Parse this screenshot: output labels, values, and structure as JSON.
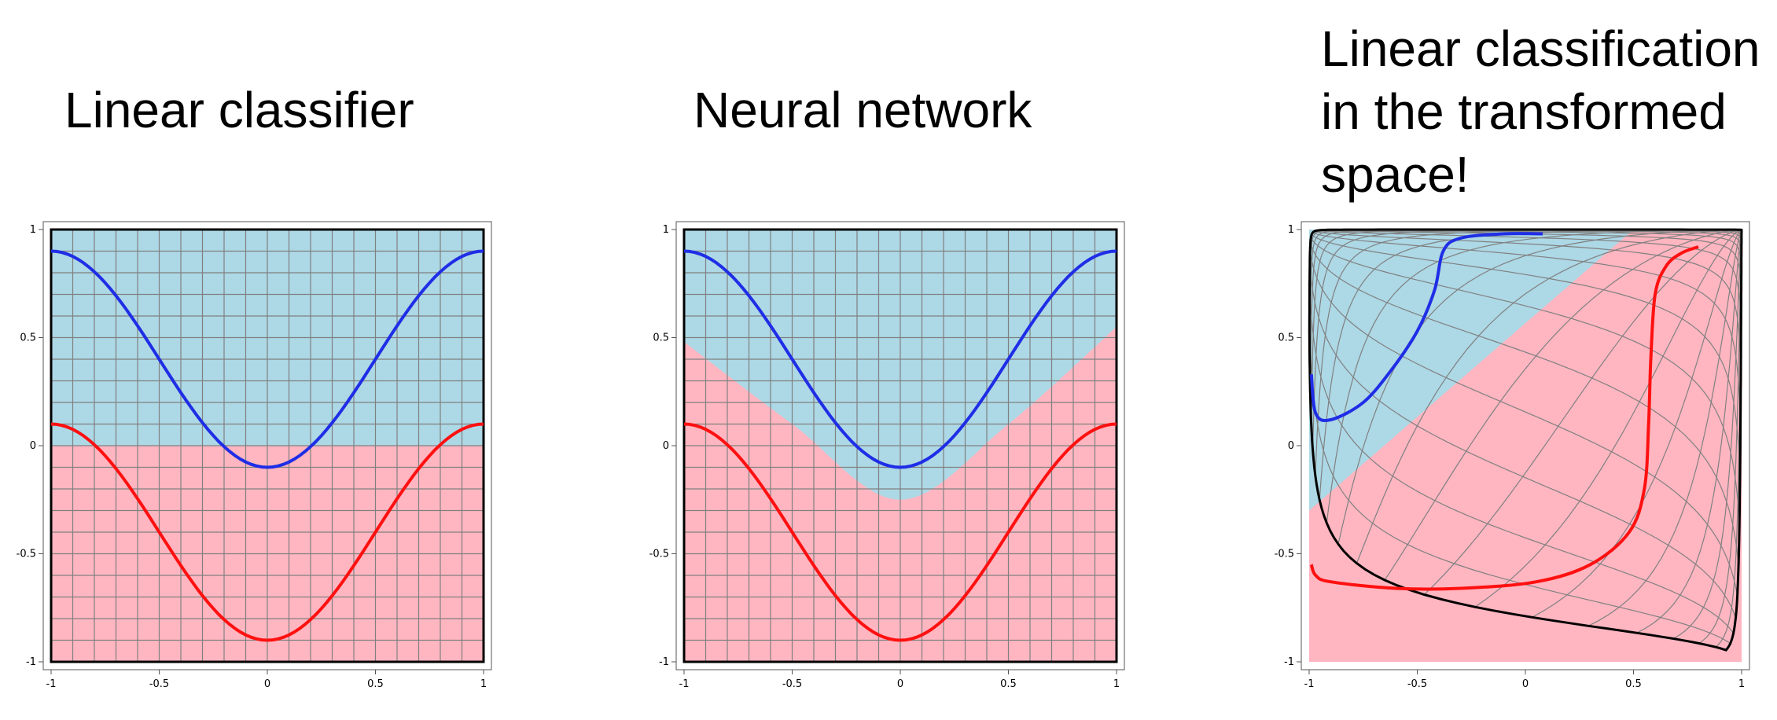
{
  "panels": [
    {
      "title_lines": [
        "Linear classifier"
      ]
    },
    {
      "title_lines": [
        "Neural network"
      ]
    },
    {
      "title_lines": [
        "Linear classification",
        "in the transformed",
        "space!"
      ]
    }
  ],
  "colors": {
    "blue_region": "#add8e6",
    "red_region": "#ffb6c1",
    "blue_curve": "#1f2ee6",
    "red_curve": "#ff1010",
    "grid": "#808080"
  },
  "chart_data": [
    {
      "type": "line",
      "title": "Linear classifier",
      "xlim": [
        -1,
        1
      ],
      "ylim": [
        -1,
        1
      ],
      "x_ticks": [
        "-1",
        "-0.5",
        "0",
        "0.5",
        "1"
      ],
      "y_ticks": [
        "1",
        "0.5",
        "0",
        "-0.5",
        "-1"
      ],
      "grid": true,
      "decision_boundary": {
        "kind": "linear",
        "y": 0.0,
        "above": "blue",
        "below": "red"
      },
      "series": [
        {
          "color": "blue",
          "x": [
            -1,
            -0.5,
            0,
            0.5,
            1
          ],
          "y": [
            0.9,
            0.4,
            -0.1,
            0.4,
            0.9
          ]
        },
        {
          "color": "red",
          "x": [
            -1,
            -0.5,
            0,
            0.5,
            1
          ],
          "y": [
            0.1,
            -0.4,
            -0.9,
            -0.4,
            0.1
          ]
        }
      ]
    },
    {
      "type": "line",
      "title": "Neural network",
      "xlim": [
        -1,
        1
      ],
      "ylim": [
        -1,
        1
      ],
      "x_ticks": [
        "-1",
        "-0.5",
        "0",
        "0.5",
        "1"
      ],
      "y_ticks": [
        "1",
        "0.5",
        "0",
        "-0.5",
        "-1"
      ],
      "grid": true,
      "decision_boundary": {
        "kind": "curved",
        "x": [
          -1,
          -0.5,
          0,
          0.5,
          1
        ],
        "y": [
          0.48,
          0.1,
          -0.25,
          0.1,
          0.55
        ],
        "above": "blue",
        "below": "red"
      },
      "series": [
        {
          "color": "blue",
          "x": [
            -1,
            -0.5,
            0,
            0.5,
            1
          ],
          "y": [
            0.9,
            0.4,
            -0.1,
            0.4,
            0.9
          ]
        },
        {
          "color": "red",
          "x": [
            -1,
            -0.5,
            0,
            0.5,
            1
          ],
          "y": [
            0.1,
            -0.4,
            -0.9,
            -0.4,
            0.1
          ]
        }
      ]
    },
    {
      "type": "line",
      "title": "Linear classification in the transformed space!",
      "xlim": [
        -1,
        1
      ],
      "ylim": [
        -1,
        1
      ],
      "x_ticks": [
        "-1",
        "-0.5",
        "0",
        "0.5",
        "1"
      ],
      "y_ticks": [
        "1",
        "0.5",
        "0",
        "-0.5",
        "-1"
      ],
      "grid": "warped",
      "decision_boundary": {
        "kind": "linear",
        "from": [
          -1,
          -0.3
        ],
        "to": [
          0.5,
          1.0
        ],
        "above": "blue",
        "below": "red"
      },
      "series": [
        {
          "color": "blue",
          "x": [
            -0.99,
            -0.97,
            -0.9,
            -0.75,
            -0.62,
            -0.5,
            -0.42,
            -0.38,
            -0.3,
            -0.1,
            0.08
          ],
          "y": [
            0.33,
            0.15,
            0.12,
            0.2,
            0.35,
            0.53,
            0.72,
            0.9,
            0.96,
            0.98,
            0.98
          ]
        },
        {
          "color": "red",
          "x": [
            -0.99,
            -0.97,
            -0.9,
            -0.6,
            -0.3,
            0.05,
            0.3,
            0.48,
            0.55,
            0.57,
            0.58,
            0.6,
            0.65,
            0.72,
            0.8
          ],
          "y": [
            -0.55,
            -0.6,
            -0.63,
            -0.66,
            -0.66,
            -0.63,
            -0.55,
            -0.4,
            -0.2,
            0.1,
            0.4,
            0.7,
            0.83,
            0.89,
            0.92
          ]
        }
      ]
    }
  ]
}
